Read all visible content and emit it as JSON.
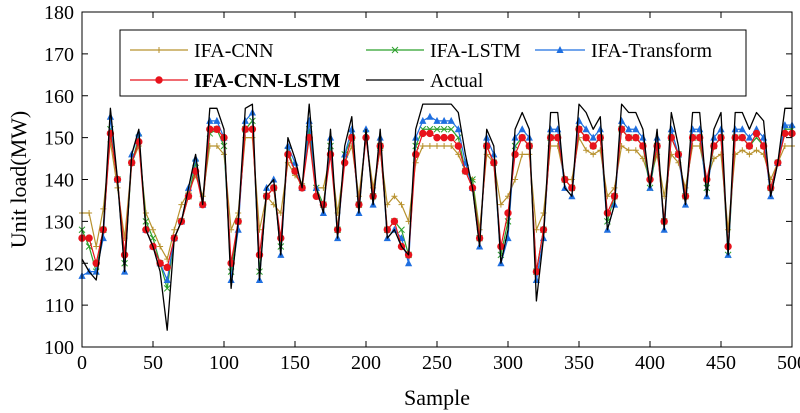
{
  "chart_data": {
    "type": "line",
    "title": "",
    "xlabel": "Sample",
    "ylabel": "Unit load(MW)",
    "xlim": [
      0,
      500
    ],
    "ylim": [
      100,
      180
    ],
    "xticks": [
      0,
      50,
      100,
      150,
      200,
      250,
      300,
      350,
      400,
      450,
      500
    ],
    "yticks": [
      100,
      110,
      120,
      130,
      140,
      150,
      160,
      170,
      180
    ],
    "grid": false,
    "legend_position": "top",
    "series": [
      {
        "name": "IFA-CNN",
        "color": "#b8922e",
        "marker": "plus",
        "x": [
          0,
          5,
          10,
          15,
          20,
          25,
          30,
          35,
          40,
          45,
          50,
          55,
          60,
          65,
          70,
          75,
          80,
          85,
          90,
          95,
          100,
          105,
          110,
          115,
          120,
          125,
          130,
          135,
          140,
          145,
          150,
          155,
          160,
          165,
          170,
          175,
          180,
          185,
          190,
          195,
          200,
          205,
          210,
          215,
          220,
          225,
          230,
          235,
          240,
          245,
          250,
          255,
          260,
          265,
          270,
          275,
          280,
          285,
          290,
          295,
          300,
          305,
          310,
          315,
          320,
          325,
          330,
          335,
          340,
          345,
          350,
          355,
          360,
          365,
          370,
          375,
          380,
          385,
          390,
          395,
          400,
          405,
          410,
          415,
          420,
          425,
          430,
          435,
          440,
          445,
          450,
          455,
          460,
          465,
          470,
          475,
          480,
          485,
          490,
          495,
          500
        ],
        "y": [
          132,
          132,
          124,
          133,
          149,
          138,
          126,
          144,
          148,
          132,
          128,
          124,
          121,
          128,
          134,
          137,
          141,
          136,
          148,
          148,
          146,
          128,
          132,
          150,
          150,
          128,
          136,
          134,
          132,
          144,
          141,
          139,
          150,
          138,
          138,
          146,
          132,
          144,
          148,
          136,
          150,
          138,
          147,
          134,
          136,
          134,
          130,
          144,
          148,
          148,
          148,
          148,
          148,
          146,
          142,
          140,
          128,
          146,
          144,
          134,
          136,
          140,
          146,
          146,
          128,
          132,
          148,
          148,
          140,
          140,
          150,
          147,
          146,
          147,
          136,
          138,
          148,
          147,
          147,
          145,
          140,
          146,
          136,
          146,
          144,
          138,
          148,
          148,
          140,
          145,
          146,
          128,
          146,
          147,
          146,
          147,
          146,
          140,
          144,
          148,
          148
        ]
      },
      {
        "name": "IFA-LSTM",
        "color": "#2ca02c",
        "marker": "x",
        "x": [
          0,
          5,
          10,
          15,
          20,
          25,
          30,
          35,
          40,
          45,
          50,
          55,
          60,
          65,
          70,
          75,
          80,
          85,
          90,
          95,
          100,
          105,
          110,
          115,
          120,
          125,
          130,
          135,
          140,
          145,
          150,
          155,
          160,
          165,
          170,
          175,
          180,
          185,
          190,
          195,
          200,
          205,
          210,
          215,
          220,
          225,
          230,
          235,
          240,
          245,
          250,
          255,
          260,
          265,
          270,
          275,
          280,
          285,
          290,
          295,
          300,
          305,
          310,
          315,
          320,
          325,
          330,
          335,
          340,
          345,
          350,
          355,
          360,
          365,
          370,
          375,
          380,
          385,
          390,
          395,
          400,
          405,
          410,
          415,
          420,
          425,
          430,
          435,
          440,
          445,
          450,
          455,
          460,
          465,
          470,
          475,
          480,
          485,
          490,
          495,
          500
        ],
        "y": [
          128,
          124,
          118,
          128,
          152,
          140,
          120,
          144,
          150,
          130,
          126,
          120,
          114,
          126,
          130,
          136,
          144,
          134,
          151,
          152,
          148,
          118,
          130,
          152,
          154,
          118,
          136,
          138,
          124,
          147,
          142,
          138,
          152,
          138,
          134,
          148,
          128,
          146,
          150,
          134,
          151,
          136,
          148,
          128,
          130,
          128,
          122,
          148,
          152,
          152,
          152,
          152,
          152,
          150,
          142,
          140,
          126,
          148,
          144,
          122,
          130,
          148,
          150,
          148,
          118,
          128,
          150,
          150,
          140,
          138,
          152,
          150,
          148,
          150,
          130,
          136,
          152,
          150,
          150,
          148,
          138,
          148,
          130,
          150,
          146,
          136,
          150,
          150,
          138,
          148,
          150,
          122,
          150,
          150,
          148,
          150,
          148,
          138,
          144,
          152,
          152
        ]
      },
      {
        "name": "IFA-Transform",
        "color": "#1f6fe0",
        "marker": "triangle",
        "x": [
          0,
          5,
          10,
          15,
          20,
          25,
          30,
          35,
          40,
          45,
          50,
          55,
          60,
          65,
          70,
          75,
          80,
          85,
          90,
          95,
          100,
          105,
          110,
          115,
          120,
          125,
          130,
          135,
          140,
          145,
          150,
          155,
          160,
          165,
          170,
          175,
          180,
          185,
          190,
          195,
          200,
          205,
          210,
          215,
          220,
          225,
          230,
          235,
          240,
          245,
          250,
          255,
          260,
          265,
          270,
          275,
          280,
          285,
          290,
          295,
          300,
          305,
          310,
          315,
          320,
          325,
          330,
          335,
          340,
          345,
          350,
          355,
          360,
          365,
          370,
          375,
          380,
          385,
          390,
          395,
          400,
          405,
          410,
          415,
          420,
          425,
          430,
          435,
          440,
          445,
          450,
          455,
          460,
          465,
          470,
          475,
          480,
          485,
          490,
          495,
          500
        ],
        "y": [
          117,
          118,
          118,
          126,
          155,
          140,
          118,
          146,
          151,
          128,
          124,
          120,
          116,
          126,
          130,
          138,
          145,
          134,
          154,
          154,
          150,
          116,
          128,
          154,
          156,
          116,
          138,
          140,
          122,
          148,
          144,
          138,
          154,
          138,
          132,
          150,
          126,
          146,
          152,
          132,
          152,
          134,
          150,
          126,
          128,
          126,
          120,
          150,
          154,
          155,
          154,
          154,
          154,
          152,
          144,
          138,
          124,
          150,
          146,
          120,
          126,
          150,
          152,
          150,
          116,
          126,
          152,
          152,
          138,
          136,
          154,
          152,
          150,
          152,
          128,
          134,
          154,
          152,
          152,
          150,
          138,
          150,
          128,
          152,
          146,
          134,
          152,
          152,
          136,
          150,
          152,
          122,
          152,
          152,
          150,
          152,
          150,
          136,
          144,
          153,
          153
        ]
      },
      {
        "name": "IFA-CNN-LSTM",
        "color": "#e8131c",
        "marker": "circle",
        "x": [
          0,
          5,
          10,
          15,
          20,
          25,
          30,
          35,
          40,
          45,
          50,
          55,
          60,
          65,
          70,
          75,
          80,
          85,
          90,
          95,
          100,
          105,
          110,
          115,
          120,
          125,
          130,
          135,
          140,
          145,
          150,
          155,
          160,
          165,
          170,
          175,
          180,
          185,
          190,
          195,
          200,
          205,
          210,
          215,
          220,
          225,
          230,
          235,
          240,
          245,
          250,
          255,
          260,
          265,
          270,
          275,
          280,
          285,
          290,
          295,
          300,
          305,
          310,
          315,
          320,
          325,
          330,
          335,
          340,
          345,
          350,
          355,
          360,
          365,
          370,
          375,
          380,
          385,
          390,
          395,
          400,
          405,
          410,
          415,
          420,
          425,
          430,
          435,
          440,
          445,
          450,
          455,
          460,
          465,
          470,
          475,
          480,
          485,
          490,
          495,
          500
        ],
        "y": [
          126,
          126,
          120,
          128,
          151,
          140,
          122,
          144,
          149,
          128,
          124,
          120,
          119,
          126,
          130,
          136,
          142,
          134,
          152,
          152,
          150,
          120,
          130,
          152,
          152,
          122,
          136,
          138,
          126,
          146,
          142,
          138,
          150,
          136,
          134,
          146,
          128,
          144,
          150,
          134,
          150,
          136,
          148,
          128,
          130,
          124,
          122,
          146,
          151,
          151,
          150,
          150,
          150,
          148,
          142,
          138,
          126,
          148,
          144,
          124,
          132,
          146,
          150,
          148,
          118,
          128,
          150,
          150,
          140,
          138,
          152,
          150,
          148,
          150,
          132,
          136,
          152,
          150,
          150,
          148,
          140,
          148,
          130,
          150,
          146,
          136,
          150,
          150,
          140,
          148,
          150,
          124,
          150,
          150,
          148,
          151,
          148,
          138,
          144,
          151,
          151
        ]
      },
      {
        "name": "Actual",
        "color": "#000000",
        "marker": "none",
        "x": [
          0,
          5,
          10,
          15,
          20,
          25,
          30,
          35,
          40,
          45,
          50,
          55,
          60,
          65,
          70,
          75,
          80,
          85,
          90,
          95,
          100,
          105,
          110,
          115,
          120,
          125,
          130,
          135,
          140,
          145,
          150,
          155,
          160,
          165,
          170,
          175,
          180,
          185,
          190,
          195,
          200,
          205,
          210,
          215,
          220,
          225,
          230,
          235,
          240,
          245,
          250,
          255,
          260,
          265,
          270,
          275,
          280,
          285,
          290,
          295,
          300,
          305,
          310,
          315,
          320,
          325,
          330,
          335,
          340,
          345,
          350,
          355,
          360,
          365,
          370,
          375,
          380,
          385,
          390,
          395,
          400,
          405,
          410,
          415,
          420,
          425,
          430,
          435,
          440,
          445,
          450,
          455,
          460,
          465,
          470,
          475,
          480,
          485,
          490,
          495,
          500
        ],
        "y": [
          121,
          118,
          116,
          128,
          157,
          140,
          118,
          146,
          152,
          128,
          124,
          118,
          104,
          126,
          130,
          138,
          146,
          134,
          157,
          157,
          152,
          114,
          130,
          157,
          158,
          116,
          138,
          140,
          122,
          150,
          145,
          138,
          158,
          138,
          132,
          152,
          126,
          148,
          155,
          132,
          152,
          134,
          152,
          126,
          128,
          124,
          122,
          152,
          158,
          158,
          158,
          158,
          158,
          156,
          146,
          138,
          124,
          152,
          148,
          120,
          128,
          152,
          156,
          152,
          111,
          126,
          156,
          156,
          138,
          136,
          158,
          156,
          152,
          155,
          128,
          134,
          158,
          156,
          156,
          152,
          138,
          152,
          128,
          156,
          148,
          134,
          156,
          156,
          136,
          152,
          156,
          122,
          156,
          156,
          152,
          156,
          154,
          136,
          144,
          157,
          157
        ]
      }
    ]
  }
}
